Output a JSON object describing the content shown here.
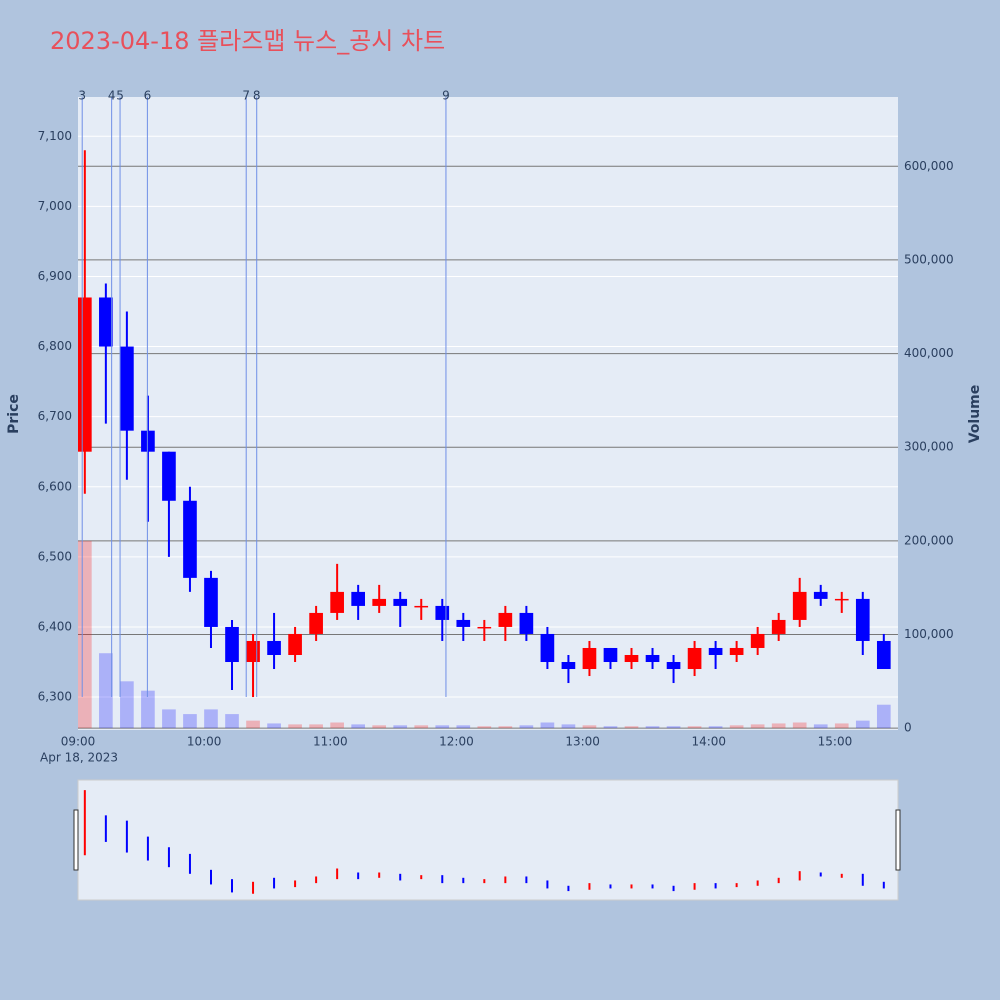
{
  "chart_data": {
    "type": "candlestick",
    "title": "2023-04-18 플라즈맵 뉴스_공시 차트",
    "y_label": "Price",
    "y2_label": "Volume",
    "x_date_label": "Apr 18, 2023",
    "x": [
      "09:00",
      "09:10",
      "09:20",
      "09:30",
      "09:40",
      "09:50",
      "10:00",
      "10:10",
      "10:20",
      "10:30",
      "10:40",
      "10:50",
      "11:00",
      "11:10",
      "11:20",
      "11:30",
      "11:40",
      "11:50",
      "12:00",
      "12:10",
      "12:20",
      "12:30",
      "12:40",
      "12:50",
      "13:00",
      "13:10",
      "13:20",
      "13:30",
      "13:40",
      "13:50",
      "14:00",
      "14:10",
      "14:20",
      "14:30",
      "14:40",
      "14:50",
      "15:00",
      "15:10",
      "15:20"
    ],
    "open": [
      6650,
      6870,
      6800,
      6680,
      6650,
      6580,
      6470,
      6400,
      6350,
      6380,
      6360,
      6390,
      6420,
      6450,
      6430,
      6440,
      6430,
      6430,
      6410,
      6400,
      6400,
      6420,
      6390,
      6350,
      6340,
      6370,
      6350,
      6360,
      6350,
      6340,
      6370,
      6360,
      6370,
      6390,
      6410,
      6450,
      6440,
      6440,
      6380
    ],
    "high": [
      7080,
      6890,
      6850,
      6730,
      6650,
      6600,
      6480,
      6410,
      6390,
      6420,
      6400,
      6430,
      6490,
      6460,
      6460,
      6450,
      6440,
      6440,
      6420,
      6410,
      6430,
      6430,
      6400,
      6360,
      6380,
      6370,
      6370,
      6370,
      6360,
      6380,
      6380,
      6380,
      6400,
      6420,
      6470,
      6460,
      6450,
      6450,
      6390
    ],
    "low": [
      6590,
      6690,
      6610,
      6550,
      6500,
      6450,
      6370,
      6310,
      6300,
      6340,
      6350,
      6380,
      6410,
      6410,
      6420,
      6400,
      6410,
      6380,
      6380,
      6380,
      6380,
      6380,
      6340,
      6320,
      6330,
      6340,
      6340,
      6340,
      6320,
      6330,
      6340,
      6350,
      6360,
      6380,
      6400,
      6430,
      6420,
      6360,
      6340
    ],
    "close": [
      6870,
      6800,
      6680,
      6650,
      6580,
      6470,
      6400,
      6350,
      6380,
      6360,
      6390,
      6420,
      6450,
      6430,
      6440,
      6430,
      6430,
      6410,
      6400,
      6400,
      6420,
      6390,
      6350,
      6340,
      6370,
      6350,
      6360,
      6350,
      6340,
      6370,
      6360,
      6370,
      6390,
      6410,
      6450,
      6440,
      6440,
      6380,
      6340
    ],
    "volume": [
      200000,
      80000,
      50000,
      40000,
      20000,
      15000,
      20000,
      15000,
      8000,
      5000,
      4000,
      4000,
      6000,
      4000,
      3000,
      3000,
      3000,
      3000,
      3000,
      2000,
      2000,
      3000,
      6000,
      4000,
      3000,
      2000,
      2000,
      2000,
      2000,
      2000,
      2000,
      3000,
      4000,
      5000,
      6000,
      4000,
      5000,
      8000,
      25000
    ],
    "increasing_color": "#ff0000",
    "decreasing_color": "#0000ff",
    "xlim": [
      "09:00",
      "15:30"
    ],
    "xticks": [
      "09:00",
      "10:00",
      "11:00",
      "12:00",
      "13:00",
      "14:00",
      "15:00"
    ],
    "ylim": [
      6253,
      7156
    ],
    "yticks": [
      {
        "value": 6300,
        "label": "6,300"
      },
      {
        "value": 6400,
        "label": "6,400"
      },
      {
        "value": 6500,
        "label": "6,500"
      },
      {
        "value": 6600,
        "label": "6,600"
      },
      {
        "value": 6700,
        "label": "6,700"
      },
      {
        "value": 6800,
        "label": "6,800"
      },
      {
        "value": 6900,
        "label": "6,900"
      },
      {
        "value": 7000,
        "label": "7,000"
      },
      {
        "value": 7100,
        "label": "7,100"
      }
    ],
    "y2lim": [
      -2000,
      674000
    ],
    "y2ticks": [
      0,
      {
        "value": 100000,
        "label": "100,000"
      },
      {
        "value": 200000,
        "label": "200,000"
      },
      {
        "value": 300000,
        "label": "300,000"
      },
      {
        "value": 400000,
        "label": "400,000"
      },
      {
        "value": 500000,
        "label": "500,000"
      },
      {
        "value": 600000,
        "label": "600,000"
      }
    ],
    "annotations": [
      {
        "label": "3",
        "x": "09:02"
      },
      {
        "label": "4",
        "x": "09:16"
      },
      {
        "label": "5",
        "x": "09:20"
      },
      {
        "label": "6",
        "x": "09:33"
      },
      {
        "label": "7",
        "x": "10:20"
      },
      {
        "label": "8",
        "x": "10:25"
      },
      {
        "label": "9",
        "x": "11:55"
      }
    ]
  }
}
